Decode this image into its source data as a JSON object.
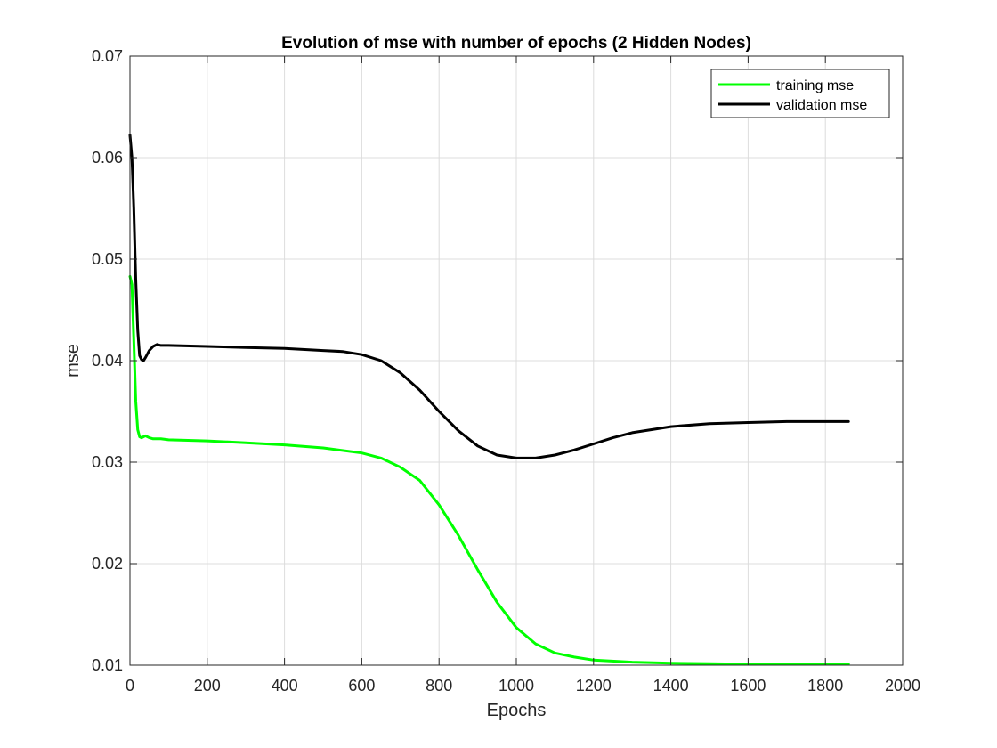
{
  "chart_data": {
    "type": "line",
    "title": "Evolution of mse with number of epochs (2 Hidden Nodes)",
    "xlabel": "Epochs",
    "ylabel": "mse",
    "xlim": [
      0,
      2000
    ],
    "ylim": [
      0.01,
      0.07
    ],
    "xticks": [
      0,
      200,
      400,
      600,
      800,
      1000,
      1200,
      1400,
      1600,
      1800,
      2000
    ],
    "xtick_labels": [
      "0",
      "200",
      "400",
      "600",
      "800",
      "1000",
      "1200",
      "1400",
      "1600",
      "1800",
      "2000"
    ],
    "yticks": [
      0.01,
      0.02,
      0.03,
      0.04,
      0.05,
      0.06,
      0.07
    ],
    "ytick_labels": [
      "0.01",
      "0.02",
      "0.03",
      "0.04",
      "0.05",
      "0.06",
      "0.07"
    ],
    "grid": true,
    "legend_position": "top-right",
    "series": [
      {
        "name": "training mse",
        "color": "#00ff00",
        "x": [
          0,
          5,
          10,
          15,
          20,
          25,
          30,
          40,
          50,
          60,
          80,
          100,
          200,
          300,
          400,
          500,
          600,
          650,
          700,
          750,
          800,
          850,
          900,
          950,
          1000,
          1050,
          1100,
          1150,
          1200,
          1300,
          1400,
          1500,
          1600,
          1700,
          1800,
          1860
        ],
        "y": [
          0.0483,
          0.0475,
          0.042,
          0.036,
          0.0332,
          0.0325,
          0.0324,
          0.0326,
          0.0324,
          0.0323,
          0.0323,
          0.0322,
          0.0321,
          0.0319,
          0.0317,
          0.0314,
          0.0309,
          0.0304,
          0.0295,
          0.0282,
          0.0258,
          0.0228,
          0.0194,
          0.0162,
          0.0137,
          0.0121,
          0.0112,
          0.0108,
          0.0105,
          0.0103,
          0.0102,
          0.01015,
          0.0101,
          0.0101,
          0.0101,
          0.0101
        ]
      },
      {
        "name": "validation mse",
        "color": "#000000",
        "x": [
          0,
          5,
          10,
          15,
          20,
          25,
          30,
          35,
          40,
          50,
          60,
          70,
          80,
          100,
          200,
          300,
          400,
          500,
          550,
          600,
          650,
          700,
          750,
          800,
          850,
          900,
          950,
          1000,
          1050,
          1100,
          1150,
          1200,
          1250,
          1300,
          1400,
          1500,
          1600,
          1700,
          1800,
          1860
        ],
        "y": [
          0.0622,
          0.06,
          0.055,
          0.048,
          0.043,
          0.0405,
          0.0401,
          0.04,
          0.0403,
          0.041,
          0.0414,
          0.0416,
          0.0415,
          0.0415,
          0.0414,
          0.0413,
          0.0412,
          0.041,
          0.0409,
          0.0406,
          0.04,
          0.0388,
          0.0371,
          0.035,
          0.0331,
          0.0316,
          0.0307,
          0.0304,
          0.0304,
          0.0307,
          0.0312,
          0.0318,
          0.0324,
          0.0329,
          0.0335,
          0.0338,
          0.0339,
          0.034,
          0.034,
          0.034
        ]
      }
    ]
  }
}
